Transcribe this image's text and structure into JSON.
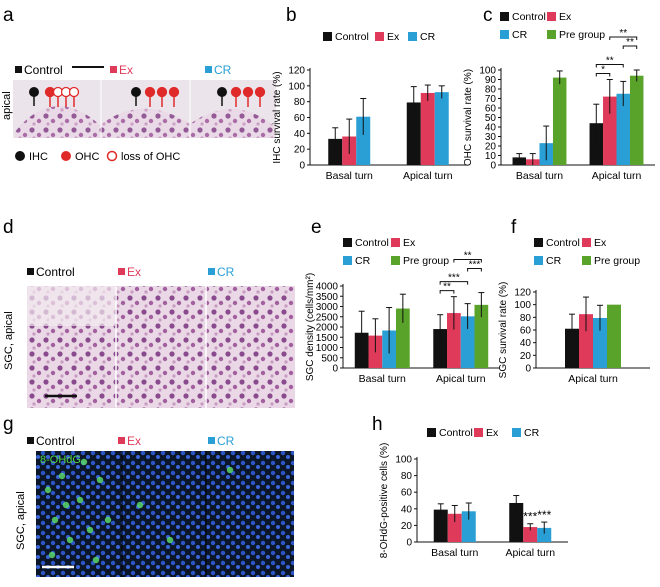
{
  "colors": {
    "control": "#111111",
    "ex": "#e03a5a",
    "cr": "#2a9fd6",
    "pre": "#5aa32a",
    "ohc": "#e02a2a",
    "he_bg": "#ece3ea",
    "fluor_bg": "#0a1420"
  },
  "panel_letters": [
    "a",
    "b",
    "c",
    "d",
    "e",
    "f",
    "g",
    "h"
  ],
  "panel_a": {
    "groups": [
      "Control",
      "Ex",
      "CR"
    ],
    "side_label": "apical",
    "legend": [
      "IHC",
      "OHC",
      "loss of OHC"
    ]
  },
  "panel_d": {
    "groups": [
      "Control",
      "Ex",
      "CR"
    ],
    "side_label": "SGC, apical"
  },
  "panel_g": {
    "groups": [
      "Control",
      "Ex",
      "CR"
    ],
    "side_label": "SGC, apical",
    "inset_label": "8-OHdG"
  },
  "chart_data": [
    {
      "id": "b",
      "type": "bar",
      "categories": [
        "Basal turn",
        "Apical turn"
      ],
      "series": [
        {
          "name": "Control",
          "values": [
            33,
            79
          ],
          "err": [
            14,
            20
          ]
        },
        {
          "name": "Ex",
          "values": [
            36,
            91
          ],
          "err": [
            22,
            10
          ]
        },
        {
          "name": "CR",
          "values": [
            61,
            92
          ],
          "err": [
            23,
            8
          ]
        }
      ],
      "ylabel": "IHC survival rate (%)",
      "ylim": [
        0,
        120
      ],
      "yticks": [
        0,
        20,
        40,
        60,
        80,
        100,
        120
      ],
      "legend_rows": [
        [
          "Control",
          "Ex",
          "CR"
        ]
      ],
      "sig": []
    },
    {
      "id": "c",
      "type": "bar",
      "categories": [
        "Basal turn",
        "Apical turn"
      ],
      "series": [
        {
          "name": "Control",
          "values": [
            8,
            44
          ],
          "err": [
            4,
            20
          ]
        },
        {
          "name": "Ex",
          "values": [
            6,
            72
          ],
          "err": [
            6,
            18
          ]
        },
        {
          "name": "CR",
          "values": [
            23,
            75
          ],
          "err": [
            18,
            13
          ]
        },
        {
          "name": "Pre group",
          "values": [
            92,
            94
          ],
          "err": [
            7,
            6
          ]
        }
      ],
      "ylabel": "OHC survival rate (%)",
      "ylim": [
        0,
        100
      ],
      "yticks": [
        0,
        10,
        20,
        30,
        40,
        50,
        60,
        70,
        80,
        90,
        100
      ],
      "legend_rows": [
        [
          "Control",
          "Ex"
        ],
        [
          "CR",
          "Pre group"
        ]
      ],
      "sig": [
        {
          "cat": 1,
          "from": 0,
          "to": 1,
          "level": 0,
          "text": "*"
        },
        {
          "cat": 1,
          "from": 0,
          "to": 2,
          "level": 1,
          "text": "**"
        },
        {
          "cat": 1,
          "from": 2,
          "to": 3,
          "level": 2,
          "text": "**"
        },
        {
          "cat": 1,
          "from": 1,
          "to": 3,
          "level": 3,
          "text": "**"
        }
      ]
    },
    {
      "id": "e",
      "type": "bar",
      "categories": [
        "Basal turn",
        "Apical turn"
      ],
      "series": [
        {
          "name": "Control",
          "values": [
            1720,
            1900
          ],
          "err": [
            1050,
            700
          ]
        },
        {
          "name": "Ex",
          "values": [
            1580,
            2680
          ],
          "err": [
            820,
            800
          ]
        },
        {
          "name": "CR",
          "values": [
            1830,
            2520
          ],
          "err": [
            1120,
            620
          ]
        },
        {
          "name": "Pre group",
          "values": [
            2900,
            3080
          ],
          "err": [
            700,
            600
          ]
        }
      ],
      "ylabel": "SGC density (cells/mm²)",
      "ylim": [
        0,
        4000
      ],
      "yticks": [
        0,
        500,
        1000,
        1500,
        2000,
        2500,
        3000,
        3500,
        4000
      ],
      "legend_rows": [
        [
          "Control",
          "Ex"
        ],
        [
          "CR",
          "Pre group"
        ]
      ],
      "sig": [
        {
          "cat": 1,
          "from": 0,
          "to": 1,
          "level": 0,
          "text": "**"
        },
        {
          "cat": 1,
          "from": 0,
          "to": 2,
          "level": 1,
          "text": "***"
        },
        {
          "cat": 1,
          "from": 2,
          "to": 3,
          "level": 2,
          "text": "***"
        },
        {
          "cat": 1,
          "from": 1,
          "to": 3,
          "level": 3,
          "text": "**"
        }
      ]
    },
    {
      "id": "f",
      "type": "bar",
      "categories": [
        "Apical turn"
      ],
      "series": [
        {
          "name": "Control",
          "values": [
            62
          ],
          "err": [
            23
          ]
        },
        {
          "name": "Ex",
          "values": [
            85
          ],
          "err": [
            27
          ]
        },
        {
          "name": "CR",
          "values": [
            79
          ],
          "err": [
            20
          ]
        },
        {
          "name": "Pre group",
          "values": [
            100
          ],
          "err": [
            0
          ]
        }
      ],
      "ylabel": "SGC survival rate (%)",
      "ylim": [
        0,
        120
      ],
      "yticks": [
        0,
        20,
        40,
        60,
        80,
        100,
        120
      ],
      "legend_rows": [
        [
          "Control",
          "Ex"
        ],
        [
          "CR",
          "Pre group"
        ]
      ],
      "sig": []
    },
    {
      "id": "h",
      "type": "bar",
      "categories": [
        "Basal turn",
        "Apical turn"
      ],
      "series": [
        {
          "name": "Control",
          "values": [
            39,
            47
          ],
          "err": [
            7,
            9
          ]
        },
        {
          "name": "Ex",
          "values": [
            34,
            18
          ],
          "err": [
            10,
            4
          ]
        },
        {
          "name": "CR",
          "values": [
            37,
            17
          ],
          "err": [
            10,
            7
          ]
        }
      ],
      "ylabel": "8-OHdG-positive cells (%)",
      "ylim": [
        0,
        100
      ],
      "yticks": [
        0,
        20,
        40,
        60,
        80,
        100
      ],
      "legend_rows": [
        [
          "Control",
          "Ex",
          "CR"
        ]
      ],
      "sig": [],
      "stars": [
        {
          "cat": 1,
          "series": 1,
          "text": "***"
        },
        {
          "cat": 1,
          "series": 2,
          "text": "***"
        }
      ]
    }
  ]
}
